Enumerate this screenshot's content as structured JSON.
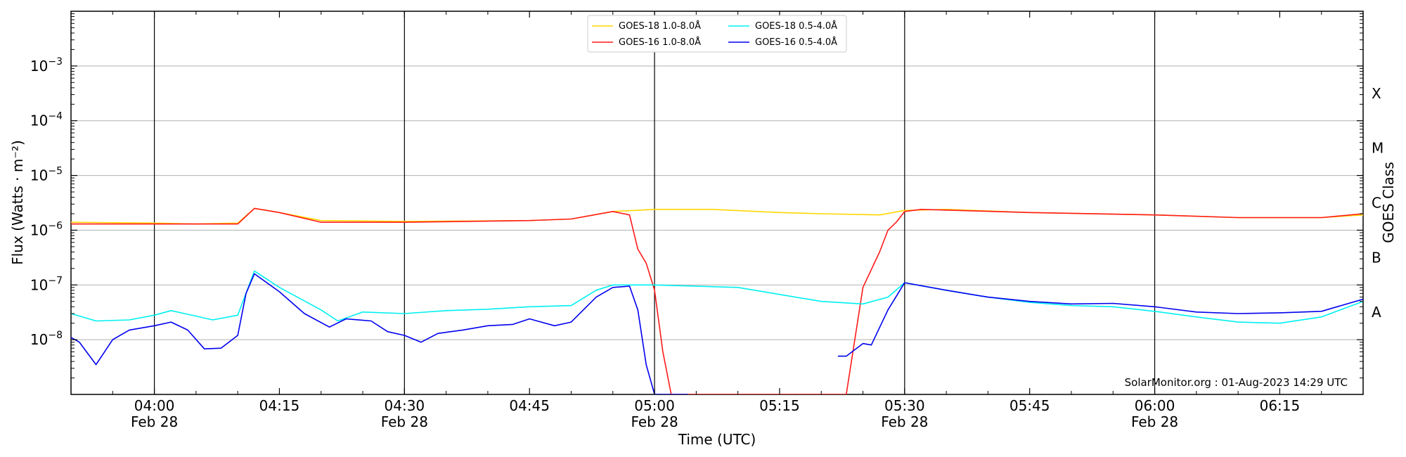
{
  "chart_data": {
    "type": "line",
    "x_range": [
      "03:50",
      "06:25"
    ],
    "y_scale": "log",
    "y_range": [
      1e-09,
      0.01
    ],
    "xlabel": "Time (UTC)",
    "ylabel": "Flux (Watts · m⁻²)",
    "ylabel_right": "GOES Class",
    "y_ticks": [
      {
        "exp": -8,
        "label": "−8"
      },
      {
        "exp": -7,
        "label": "−7"
      },
      {
        "exp": -6,
        "label": "−6"
      },
      {
        "exp": -5,
        "label": "−5"
      },
      {
        "exp": -4,
        "label": "−4"
      },
      {
        "exp": -3,
        "label": "−3"
      }
    ],
    "x_ticks": [
      {
        "time": "04:00",
        "label": "04:00",
        "date": "Feb 28"
      },
      {
        "time": "04:15",
        "label": "04:15",
        "date": ""
      },
      {
        "time": "04:30",
        "label": "04:30",
        "date": "Feb 28"
      },
      {
        "time": "04:45",
        "label": "04:45",
        "date": ""
      },
      {
        "time": "05:00",
        "label": "05:00",
        "date": "Feb 28"
      },
      {
        "time": "05:15",
        "label": "05:15",
        "date": ""
      },
      {
        "time": "05:30",
        "label": "05:30",
        "date": "Feb 28"
      },
      {
        "time": "05:45",
        "label": "05:45",
        "date": ""
      },
      {
        "time": "06:00",
        "label": "06:00",
        "date": "Feb 28"
      },
      {
        "time": "06:15",
        "label": "06:15",
        "date": ""
      }
    ],
    "vlines": [
      "04:00",
      "04:30",
      "05:00",
      "05:30",
      "06:00"
    ],
    "goes_classes": [
      {
        "label": "X",
        "exp": -3.5
      },
      {
        "label": "M",
        "exp": -4.5
      },
      {
        "label": "C",
        "exp": -5.5
      },
      {
        "label": "B",
        "exp": -6.5
      },
      {
        "label": "A",
        "exp": -7.5
      }
    ],
    "grid": true,
    "legend_position": "top-center",
    "series": [
      {
        "name": "GOES-18 1.0-8.0Å",
        "color": "#ffd700",
        "points": [
          [
            "03:50",
            1.4e-06
          ],
          [
            "04:00",
            1.35e-06
          ],
          [
            "04:05",
            1.3e-06
          ],
          [
            "04:10",
            1.35e-06
          ],
          [
            "04:12",
            2.5e-06
          ],
          [
            "04:15",
            2.1e-06
          ],
          [
            "04:20",
            1.5e-06
          ],
          [
            "04:30",
            1.45e-06
          ],
          [
            "04:45",
            1.5e-06
          ],
          [
            "04:50",
            1.6e-06
          ],
          [
            "04:55",
            2.2e-06
          ],
          [
            "05:00",
            2.4e-06
          ],
          [
            "05:07",
            2.4e-06
          ],
          [
            "05:15",
            2.1e-06
          ],
          [
            "05:20",
            2e-06
          ],
          [
            "05:27",
            1.9e-06
          ],
          [
            "05:30",
            2.3e-06
          ],
          [
            "05:35",
            2.4e-06
          ],
          [
            "05:45",
            2.1e-06
          ],
          [
            "06:00",
            1.9e-06
          ],
          [
            "06:10",
            1.7e-06
          ],
          [
            "06:20",
            1.7e-06
          ],
          [
            "06:25",
            1.9e-06
          ]
        ]
      },
      {
        "name": "GOES-16 1.0-8.0Å",
        "color": "#ff1a1a",
        "points": [
          [
            "03:50",
            1.3e-06
          ],
          [
            "04:00",
            1.3e-06
          ],
          [
            "04:05",
            1.3e-06
          ],
          [
            "04:10",
            1.3e-06
          ],
          [
            "04:12",
            2.5e-06
          ],
          [
            "04:15",
            2.1e-06
          ],
          [
            "04:20",
            1.4e-06
          ],
          [
            "04:30",
            1.4e-06
          ],
          [
            "04:45",
            1.5e-06
          ],
          [
            "04:50",
            1.6e-06
          ],
          [
            "04:55",
            2.2e-06
          ],
          [
            "04:57",
            1.9e-06
          ],
          [
            "04:58",
            4.5e-07
          ],
          [
            "04:59",
            2.5e-07
          ],
          [
            "05:00",
            8e-08
          ],
          [
            "05:01",
            6e-09
          ],
          [
            "05:02",
            1e-09
          ],
          [
            "05:04",
            1e-09
          ],
          [
            "05:22",
            1e-09
          ],
          [
            "05:23",
            1e-09
          ],
          [
            "05:25",
            9e-08
          ],
          [
            "05:27",
            4e-07
          ],
          [
            "05:28",
            1e-06
          ],
          [
            "05:29",
            1.4e-06
          ],
          [
            "05:30",
            2.2e-06
          ],
          [
            "05:32",
            2.4e-06
          ],
          [
            "05:45",
            2.1e-06
          ],
          [
            "06:00",
            1.9e-06
          ],
          [
            "06:10",
            1.7e-06
          ],
          [
            "06:20",
            1.7e-06
          ],
          [
            "06:25",
            2e-06
          ]
        ]
      },
      {
        "name": "GOES-18 0.5-4.0Å",
        "color": "#00f0f0",
        "points": [
          [
            "03:50",
            3e-08
          ],
          [
            "03:53",
            2.2e-08
          ],
          [
            "03:57",
            2.3e-08
          ],
          [
            "04:00",
            2.8e-08
          ],
          [
            "04:02",
            3.4e-08
          ],
          [
            "04:05",
            2.7e-08
          ],
          [
            "04:07",
            2.3e-08
          ],
          [
            "04:10",
            2.8e-08
          ],
          [
            "04:12",
            1.8e-07
          ],
          [
            "04:15",
            9e-08
          ],
          [
            "04:20",
            3.5e-08
          ],
          [
            "04:22",
            2.2e-08
          ],
          [
            "04:25",
            3.2e-08
          ],
          [
            "04:30",
            3e-08
          ],
          [
            "04:35",
            3.4e-08
          ],
          [
            "04:40",
            3.6e-08
          ],
          [
            "04:45",
            4e-08
          ],
          [
            "04:50",
            4.2e-08
          ],
          [
            "04:53",
            8e-08
          ],
          [
            "04:55",
            1e-07
          ],
          [
            "05:00",
            1e-07
          ],
          [
            "05:10",
            9e-08
          ],
          [
            "05:20",
            5e-08
          ],
          [
            "05:25",
            4.5e-08
          ],
          [
            "05:28",
            6e-08
          ],
          [
            "05:30",
            1.1e-07
          ],
          [
            "05:35",
            8e-08
          ],
          [
            "05:40",
            6e-08
          ],
          [
            "05:45",
            4.8e-08
          ],
          [
            "05:50",
            4.2e-08
          ],
          [
            "05:55",
            4e-08
          ],
          [
            "06:00",
            3.3e-08
          ],
          [
            "06:05",
            2.6e-08
          ],
          [
            "06:10",
            2.1e-08
          ],
          [
            "06:15",
            2e-08
          ],
          [
            "06:20",
            2.6e-08
          ],
          [
            "06:25",
            5e-08
          ]
        ]
      },
      {
        "name": "GOES-16 0.5-4.0Å",
        "color": "#0000ee",
        "points": [
          [
            "03:50",
            1.1e-08
          ],
          [
            "03:51",
            9e-09
          ],
          [
            "03:53",
            3.5e-09
          ],
          [
            "03:55",
            1e-08
          ],
          [
            "03:57",
            1.5e-08
          ],
          [
            "04:00",
            1.8e-08
          ],
          [
            "04:02",
            2.1e-08
          ],
          [
            "04:04",
            1.5e-08
          ],
          [
            "04:06",
            6.8e-09
          ],
          [
            "04:08",
            7e-09
          ],
          [
            "04:10",
            1.2e-08
          ],
          [
            "04:11",
            7e-08
          ],
          [
            "04:12",
            1.6e-07
          ],
          [
            "04:15",
            7.5e-08
          ],
          [
            "04:18",
            3e-08
          ],
          [
            "04:21",
            1.7e-08
          ],
          [
            "04:23",
            2.4e-08
          ],
          [
            "04:26",
            2.2e-08
          ],
          [
            "04:28",
            1.4e-08
          ],
          [
            "04:30",
            1.2e-08
          ],
          [
            "04:32",
            9e-09
          ],
          [
            "04:34",
            1.3e-08
          ],
          [
            "04:37",
            1.5e-08
          ],
          [
            "04:40",
            1.8e-08
          ],
          [
            "04:43",
            1.9e-08
          ],
          [
            "04:45",
            2.4e-08
          ],
          [
            "04:48",
            1.8e-08
          ],
          [
            "04:50",
            2.1e-08
          ],
          [
            "04:53",
            6e-08
          ],
          [
            "04:55",
            9e-08
          ],
          [
            "04:57",
            9.5e-08
          ],
          [
            "04:58",
            3.5e-08
          ],
          [
            "04:59",
            3.5e-09
          ],
          [
            "05:00",
            1e-09
          ],
          [
            "05:04",
            1e-09
          ],
          null,
          [
            "05:22",
            5e-09
          ],
          [
            "05:23",
            5e-09
          ],
          [
            "05:25",
            8.5e-09
          ],
          [
            "05:26",
            8e-09
          ],
          [
            "05:28",
            3.5e-08
          ],
          [
            "05:30",
            1.1e-07
          ],
          [
            "05:35",
            8e-08
          ],
          [
            "05:40",
            6e-08
          ],
          [
            "05:45",
            5e-08
          ],
          [
            "05:50",
            4.5e-08
          ],
          [
            "05:55",
            4.6e-08
          ],
          [
            "06:00",
            4e-08
          ],
          [
            "06:05",
            3.2e-08
          ],
          [
            "06:10",
            3e-08
          ],
          [
            "06:15",
            3.1e-08
          ],
          [
            "06:20",
            3.3e-08
          ],
          [
            "06:25",
            5.5e-08
          ]
        ]
      }
    ],
    "annotation": "SolarMonitor.org : 01-Aug-2023 14:29 UTC"
  }
}
